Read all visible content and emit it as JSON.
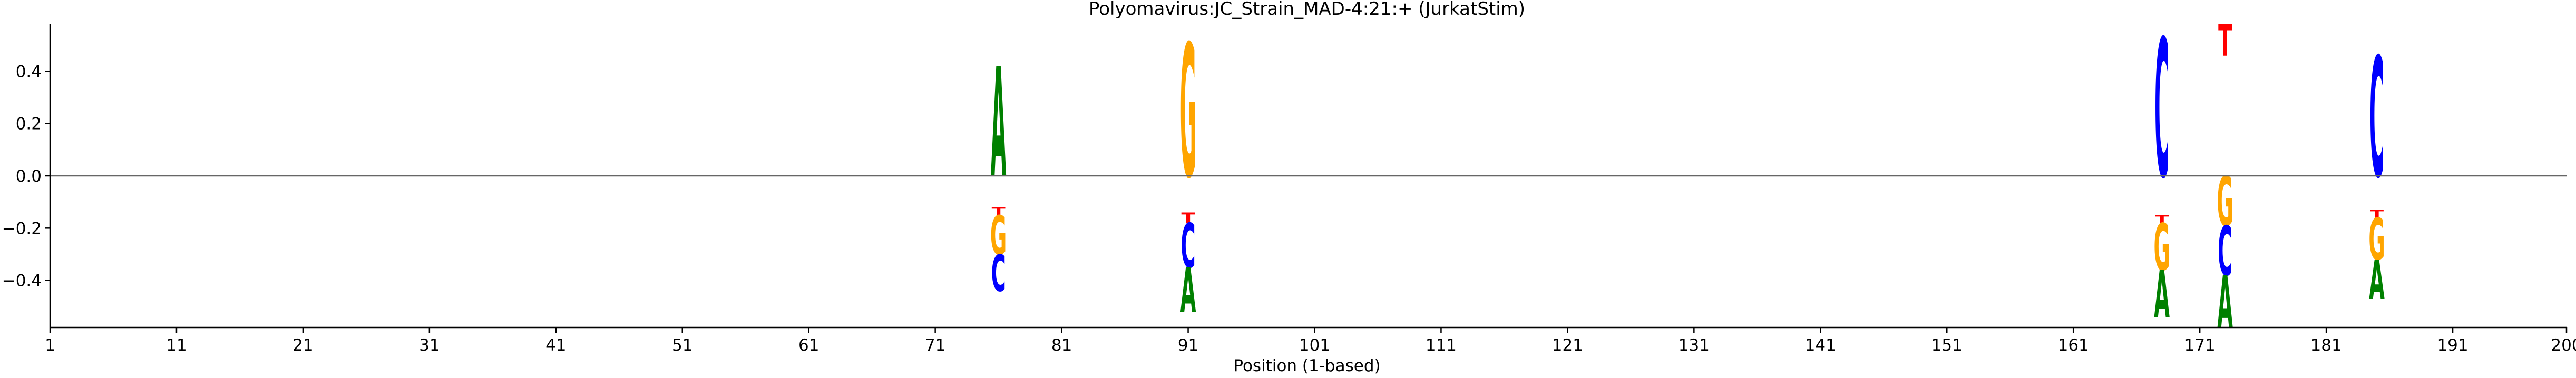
{
  "chart_data": {
    "type": "sequence-logo",
    "title": "Polyomavirus:JC_Strain_MAD-4:21:+  (JurkatStim)",
    "xlabel": "Position (1-based)",
    "ylabel": "",
    "xlim": [
      1,
      200
    ],
    "ylim": [
      -0.58,
      0.58
    ],
    "x_ticks": [
      1,
      11,
      21,
      31,
      41,
      51,
      61,
      71,
      81,
      91,
      101,
      111,
      121,
      131,
      141,
      151,
      161,
      171,
      181,
      191,
      200
    ],
    "y_ticks": [
      -0.4,
      -0.2,
      0.0,
      0.2,
      0.4
    ],
    "y_tick_labels": [
      "−0.4",
      "−0.2",
      "0.0",
      "0.2",
      "0.4"
    ],
    "colors": {
      "A": "#008000",
      "C": "#0000ff",
      "G": "#ffa500",
      "T": "#ff0000",
      "zero_line": "#666666"
    },
    "positions": [
      {
        "pos": 76,
        "stack": [
          {
            "base": "A",
            "start": 0.0,
            "end": 0.42
          },
          {
            "base": "T",
            "start": -0.12,
            "end": -0.15
          },
          {
            "base": "G",
            "start": -0.15,
            "end": -0.3
          },
          {
            "base": "C",
            "start": -0.3,
            "end": -0.44
          }
        ]
      },
      {
        "pos": 91,
        "stack": [
          {
            "base": "G",
            "start": 0.0,
            "end": 0.51
          },
          {
            "base": "T",
            "start": -0.14,
            "end": -0.18
          },
          {
            "base": "C",
            "start": -0.18,
            "end": -0.35
          },
          {
            "base": "A",
            "start": -0.35,
            "end": -0.52
          }
        ]
      },
      {
        "pos": 168,
        "stack": [
          {
            "base": "C",
            "start": 0.0,
            "end": 0.53
          },
          {
            "base": "T",
            "start": -0.15,
            "end": -0.18
          },
          {
            "base": "G",
            "start": -0.18,
            "end": -0.36
          },
          {
            "base": "A",
            "start": -0.36,
            "end": -0.54
          }
        ]
      },
      {
        "pos": 173,
        "stack": [
          {
            "base": "T",
            "start": 0.46,
            "end": 0.58
          },
          {
            "base": "G",
            "start": 0.0,
            "end": -0.19
          },
          {
            "base": "C",
            "start": -0.19,
            "end": -0.38
          },
          {
            "base": "A",
            "start": -0.38,
            "end": -0.58
          }
        ]
      },
      {
        "pos": 185,
        "stack": [
          {
            "base": "C",
            "start": 0.0,
            "end": 0.46
          },
          {
            "base": "T",
            "start": -0.13,
            "end": -0.16
          },
          {
            "base": "G",
            "start": -0.16,
            "end": -0.32
          },
          {
            "base": "A",
            "start": -0.32,
            "end": -0.47
          }
        ]
      }
    ]
  }
}
